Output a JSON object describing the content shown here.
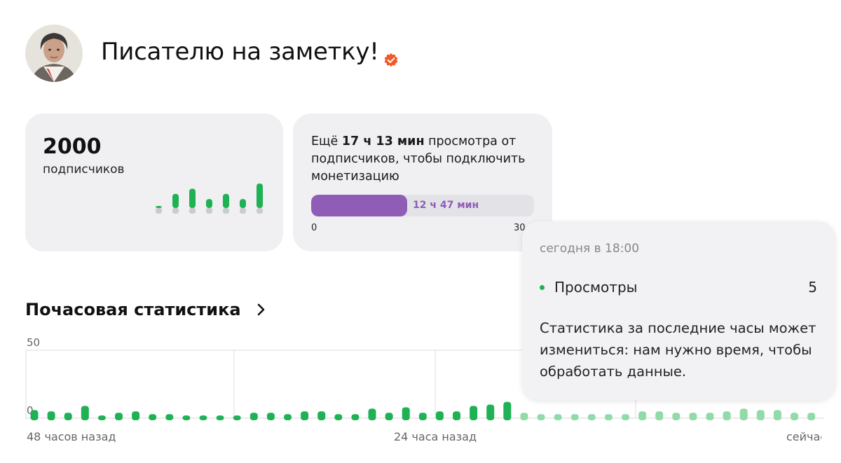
{
  "channel": {
    "title": "Писателю на заметку!",
    "verified_color": "#f15a24"
  },
  "subscribers": {
    "count": "2000",
    "label": "подписчиков",
    "trend": [
      2,
      22,
      30,
      14,
      22,
      14,
      38
    ]
  },
  "monetization": {
    "text_prefix": "Ещё ",
    "text_bold": "17 ч 13 мин",
    "text_suffix": " просмотра от подписчиков, чтобы подключить монетизацию",
    "progress_label": "12 ч 47 мин",
    "progress_fraction": 0.43,
    "range_min": "0",
    "range_max": "30",
    "accent": "#8f5db6"
  },
  "hourly": {
    "title": "Почасовая статистика",
    "y_max_label": "50",
    "y_min_label": "0",
    "x_labels": [
      "48 часов назад",
      "24 часа назад",
      "сейчас"
    ]
  },
  "chart_data": {
    "type": "bar",
    "y_range": [
      0,
      50
    ],
    "values": [
      6,
      5,
      4,
      9,
      2,
      4,
      5,
      3,
      3,
      2,
      2,
      2,
      2,
      4,
      4,
      3,
      5,
      5,
      3,
      3,
      7,
      4,
      8,
      4,
      5,
      5,
      9,
      10,
      12,
      4,
      3,
      3,
      3,
      3,
      3,
      3,
      5,
      5,
      4,
      4,
      4,
      5,
      7,
      6,
      6,
      4,
      4,
      4
    ],
    "highlighted_count": 29,
    "color_active": "#1fb255",
    "color_faded": "#90dba8"
  },
  "tooltip": {
    "time": "сегодня в 18:00",
    "metric_label": "Просмотры",
    "metric_value": "5",
    "note": "Статистика за последние часы может измениться: нам нужно время, чтобы обработать данные."
  }
}
